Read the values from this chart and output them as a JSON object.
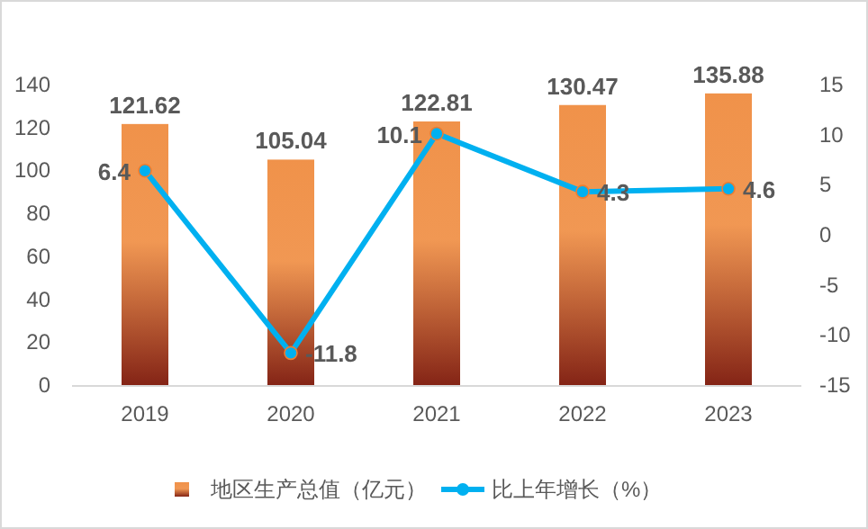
{
  "chart_data": {
    "type": "bar",
    "categories": [
      "2019",
      "2020",
      "2021",
      "2022",
      "2023"
    ],
    "series": [
      {
        "name": "地区生产总值（亿元）",
        "color": "#f0924a",
        "values": [
          121.62,
          105.04,
          122.81,
          130.47,
          135.88
        ],
        "value_labels": [
          "121.62",
          "105.04",
          "122.81",
          "130.47",
          "135.88"
        ]
      },
      {
        "name": "比上年增长（%）",
        "type": "line",
        "axis": "y2",
        "color": "#00b0f0",
        "marker": "circle",
        "values": [
          6.4,
          -11.8,
          10.1,
          4.3,
          4.6
        ],
        "value_labels": [
          "6.4",
          "-11.8",
          "10.1",
          "4.3",
          "4.6"
        ]
      }
    ],
    "ylim": [
      0,
      140
    ],
    "yticks": [
      0,
      20,
      40,
      60,
      80,
      100,
      120,
      140
    ],
    "y2lim": [
      -15,
      15
    ],
    "y2ticks": [
      -15,
      -10,
      -5,
      0,
      5,
      10,
      15
    ],
    "grid": false,
    "legend": "bottom"
  }
}
